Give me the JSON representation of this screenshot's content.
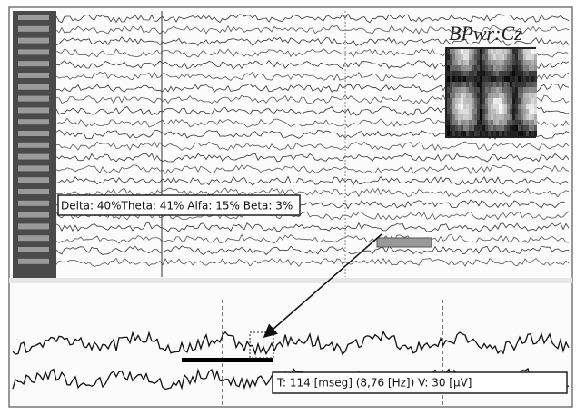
{
  "eeg_view": {
    "spectrogram_label": "BPwr:Cz",
    "band_power_label": "Delta: 40%Theta: 41% Alfa: 15% Beta: 3%",
    "measurement_label": "T: 114 [mseg] (8,76 [Hz]) V: 30 [µV]"
  }
}
